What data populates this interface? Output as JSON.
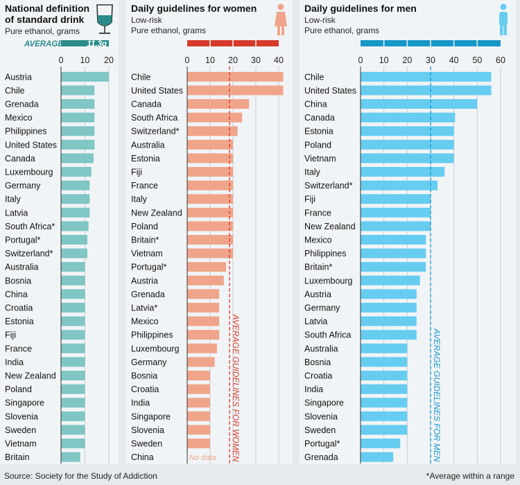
{
  "footer": {
    "source": "Source: Society for the Study of Addiction",
    "note": "*Average within a range"
  },
  "colors": {
    "teal": "#7fc6c4",
    "teal_dark": "#2b8c8a",
    "salmon": "#f0a58a",
    "salmon_dark": "#d63a2a",
    "blue": "#66cdf0",
    "blue_dark": "#1597c8"
  },
  "icons": [
    "wine-glass-icon",
    "woman-icon",
    "man-icon"
  ],
  "chart_data": [
    {
      "type": "bar",
      "orientation": "horizontal",
      "title_lines": [
        "National definition",
        "of standard drink"
      ],
      "subtitle_lines": [
        "Pure ethanol, grams"
      ],
      "average_label": "AVERAGE",
      "average_value_label": "11.3g",
      "average": 11.3,
      "xlim": [
        0,
        20
      ],
      "ticks": [
        0,
        10,
        20
      ],
      "categories": [
        "Austria",
        "Chile",
        "Grenada",
        "Mexico",
        "Philippines",
        "United States",
        "Canada",
        "Luxembourg",
        "Germany",
        "Italy",
        "Latvia",
        "South Africa*",
        "Portugal*",
        "Switzerland*",
        "Australia",
        "Bosnia",
        "China",
        "Croatia",
        "Estonia",
        "Fiji",
        "France",
        "India",
        "New Zealand",
        "Poland",
        "Singapore",
        "Slovenia",
        "Sweden",
        "Vietnam",
        "Britain"
      ],
      "values": [
        20,
        14,
        14,
        14,
        14,
        14,
        13.6,
        12.7,
        12,
        12,
        12,
        11.5,
        11,
        11,
        10,
        10,
        10,
        10,
        10,
        10,
        10,
        10,
        10,
        10,
        10,
        10,
        10,
        10,
        8
      ]
    },
    {
      "type": "bar",
      "orientation": "horizontal",
      "title_lines": [
        "Daily guidelines for women"
      ],
      "subtitle_lines": [
        "Low-risk",
        "Pure ethanol, grams"
      ],
      "average_label": "AVERAGE GUIDELINES FOR WOMEN",
      "average": 18.5,
      "no_data_label": "No data",
      "xlim": [
        0,
        40
      ],
      "ticks": [
        0,
        10,
        20,
        30,
        40
      ],
      "categories": [
        "Chile",
        "United States",
        "Canada",
        "South Africa",
        "Switzerland*",
        "Australia",
        "Estonia",
        "Fiji",
        "France",
        "Italy",
        "New Zealand",
        "Poland",
        "Britain*",
        "Vietnam",
        "Portugal*",
        "Austria",
        "Grenada",
        "Latvia*",
        "Mexico",
        "Philippines",
        "Luxembourg",
        "Germany",
        "Bosnia",
        "Croatia",
        "India",
        "Singapore",
        "Slovenia",
        "Sweden",
        "China"
      ],
      "values": [
        42,
        42,
        27,
        24,
        22,
        20,
        20,
        20,
        20,
        20,
        20,
        20,
        20,
        20,
        17,
        16,
        14,
        14,
        14,
        14,
        13,
        12,
        10,
        10,
        10,
        10,
        10,
        10,
        null
      ]
    },
    {
      "type": "bar",
      "orientation": "horizontal",
      "title_lines": [
        "Daily guidelines for men"
      ],
      "subtitle_lines": [
        "Low-risk",
        "Pure ethanol, grams"
      ],
      "average_label": "AVERAGE GUIDELINES FOR MEN",
      "average": 30,
      "xlim": [
        0,
        60
      ],
      "ticks": [
        0,
        10,
        20,
        30,
        40,
        50,
        60
      ],
      "categories": [
        "Chile",
        "United States",
        "China",
        "Canada",
        "Estonia",
        "Poland",
        "Vietnam",
        "Italy",
        "Switzerland*",
        "Fiji",
        "France",
        "New Zealand",
        "Mexico",
        "Philippines",
        "Britain*",
        "Luxembourg",
        "Austria",
        "Germany",
        "Latvia",
        "South Africa",
        "Australia",
        "Bosnia",
        "Croatia",
        "India",
        "Singapore",
        "Slovenia",
        "Sweden",
        "Portugal*",
        "Grenada"
      ],
      "values": [
        56,
        56,
        50,
        40.5,
        40,
        40,
        40,
        36,
        33,
        30,
        30,
        30,
        28,
        28,
        28,
        25.5,
        24,
        24,
        24,
        24,
        20,
        20,
        20,
        20,
        20,
        20,
        20,
        17,
        14
      ]
    }
  ]
}
